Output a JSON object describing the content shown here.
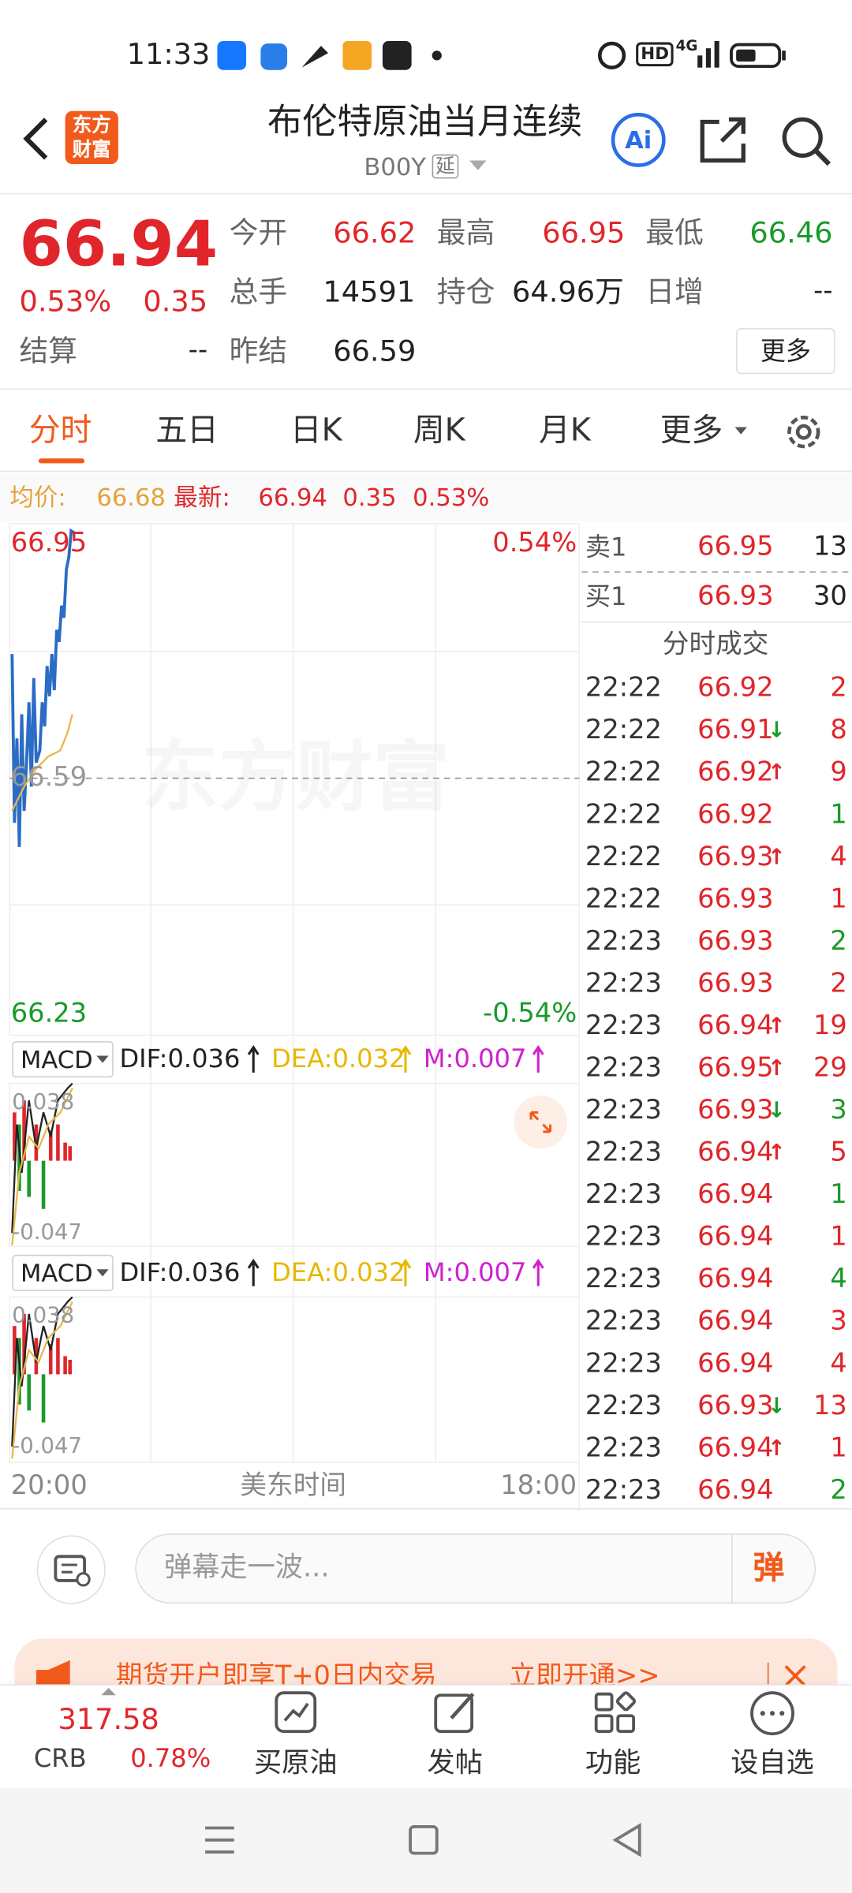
{
  "status_bar": {
    "time": "11:33",
    "hd": "HD",
    "network": "4G"
  },
  "header": {
    "logo": "东方财富",
    "title": "布伦特原油当月连续",
    "code": "B00Y",
    "tag": "延"
  },
  "quote": {
    "price": "66.94",
    "change_pct": "0.53%",
    "change": "0.35",
    "settle_label": "结算",
    "settle": "--",
    "open_label": "今开",
    "open": "66.62",
    "high_label": "最高",
    "high": "66.95",
    "low_label": "最低",
    "low": "66.46",
    "volume_label": "总手",
    "volume": "14591",
    "position_label": "持仓",
    "position": "64.96万",
    "daily_inc_label": "日增",
    "daily_inc": "--",
    "prev_settle_label": "昨结",
    "prev_settle": "66.59",
    "more": "更多"
  },
  "tabs": [
    "分时",
    "五日",
    "日K",
    "周K",
    "月K",
    "更多"
  ],
  "info_line": {
    "avg_label": "均价:",
    "avg": "66.68",
    "last_label": "最新:",
    "last": "66.94",
    "change": "0.35",
    "change_pct": "0.53%"
  },
  "chart": {
    "watermark": "东方财富",
    "top_price": "66.95",
    "top_pct": "0.54%",
    "mid_price": "66.59",
    "bottom_price": "66.23",
    "bottom_pct": "-0.54%",
    "x_start": "20:00",
    "x_mid": "美东时间",
    "x_end": "18:00"
  },
  "macd_panels": [
    {
      "name": "MACD",
      "dif": "DIF:0.036",
      "dea": "DEA:0.032",
      "m": "M:0.007",
      "top": "0.038",
      "bottom": "-0.047"
    },
    {
      "name": "MACD",
      "dif": "DIF:0.036",
      "dea": "DEA:0.032",
      "m": "M:0.007",
      "top": "0.038",
      "bottom": "-0.047"
    }
  ],
  "order_book": {
    "ask_label": "卖1",
    "ask_price": "66.95",
    "ask_vol": "13",
    "bid_label": "买1",
    "bid_price": "66.93",
    "bid_vol": "30"
  },
  "trades_title": "分时成交",
  "trades": [
    {
      "time": "22:22",
      "price": "66.92",
      "vol": "2",
      "vol_color": "#e0262b"
    },
    {
      "time": "22:22",
      "price": "66.91",
      "arrow": "↓",
      "vol": "8",
      "vol_color": "#e0262b"
    },
    {
      "time": "22:22",
      "price": "66.92",
      "arrow": "↑",
      "vol": "9",
      "vol_color": "#e0262b"
    },
    {
      "time": "22:22",
      "price": "66.92",
      "vol": "1",
      "vol_color": "#1a9a2a"
    },
    {
      "time": "22:22",
      "price": "66.93",
      "arrow": "↑",
      "vol": "4",
      "vol_color": "#e0262b"
    },
    {
      "time": "22:22",
      "price": "66.93",
      "vol": "1",
      "vol_color": "#e0262b"
    },
    {
      "time": "22:23",
      "price": "66.93",
      "vol": "2",
      "vol_color": "#1a9a2a"
    },
    {
      "time": "22:23",
      "price": "66.93",
      "vol": "2",
      "vol_color": "#e0262b"
    },
    {
      "time": "22:23",
      "price": "66.94",
      "arrow": "↑",
      "vol": "19",
      "vol_color": "#e0262b"
    },
    {
      "time": "22:23",
      "price": "66.95",
      "arrow": "↑",
      "vol": "29",
      "vol_color": "#e0262b"
    },
    {
      "time": "22:23",
      "price": "66.93",
      "arrow": "↓",
      "vol": "3",
      "vol_color": "#1a9a2a"
    },
    {
      "time": "22:23",
      "price": "66.94",
      "arrow": "↑",
      "vol": "5",
      "vol_color": "#e0262b"
    },
    {
      "time": "22:23",
      "price": "66.94",
      "vol": "1",
      "vol_color": "#1a9a2a"
    },
    {
      "time": "22:23",
      "price": "66.94",
      "vol": "1",
      "vol_color": "#e0262b"
    },
    {
      "time": "22:23",
      "price": "66.94",
      "vol": "4",
      "vol_color": "#1a9a2a"
    },
    {
      "time": "22:23",
      "price": "66.94",
      "vol": "3",
      "vol_color": "#e0262b"
    },
    {
      "time": "22:23",
      "price": "66.94",
      "vol": "4",
      "vol_color": "#e0262b"
    },
    {
      "time": "22:23",
      "price": "66.93",
      "arrow": "↓",
      "vol": "13",
      "vol_color": "#e0262b"
    },
    {
      "time": "22:23",
      "price": "66.94",
      "arrow": "↑",
      "vol": "1",
      "vol_color": "#e0262b"
    },
    {
      "time": "22:23",
      "price": "66.94",
      "vol": "2",
      "vol_color": "#1a9a2a"
    }
  ],
  "comment": {
    "placeholder": "弹幕走一波...",
    "button": "弹"
  },
  "banner": {
    "text": "期货开户即享T+0日内交易",
    "link": "立即开通>>"
  },
  "bottom_nav": {
    "index_value": "317.58",
    "index_name": "CRB",
    "index_pct": "0.78%",
    "items": [
      "买原油",
      "发帖",
      "功能",
      "设自选"
    ]
  }
}
